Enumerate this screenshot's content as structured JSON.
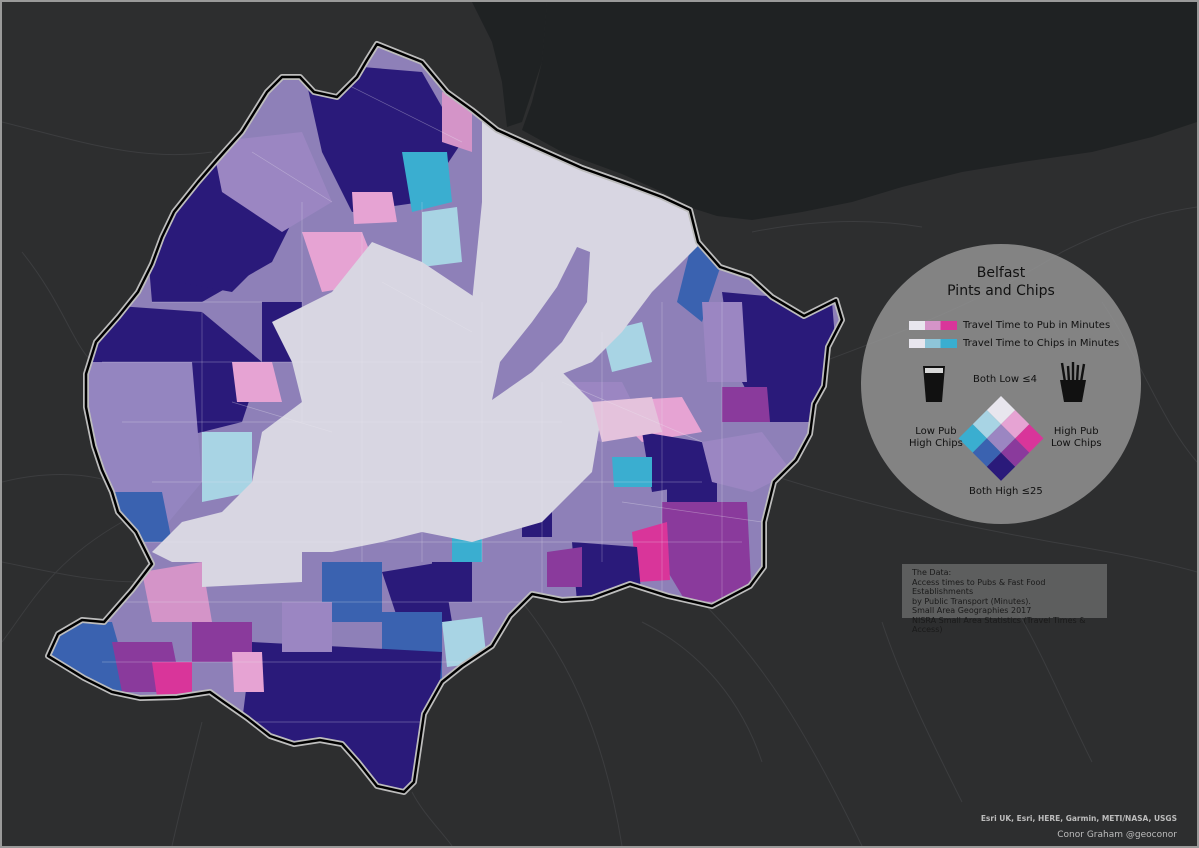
{
  "legend": {
    "title_line1": "Belfast",
    "title_line2": "Pints and Chips",
    "pub_ramp_label": "Travel Time to Pub in Minutes",
    "chips_ramp_label": "Travel Time to Chips in Minutes",
    "top_label": "Both Low ≤4",
    "left_label_line1": "Low  Pub",
    "left_label_line2": "High Chips",
    "right_label_line1": "High Pub",
    "right_label_line2": "Low Chips",
    "bottom_label": "Both High ≤25",
    "icons": [
      "pint-glass-icon",
      "chips-icon"
    ],
    "pub_ramp_colors": [
      "#e8e6ee",
      "#d494c8",
      "#d9359a"
    ],
    "chips_ramp_colors": [
      "#e8e6ee",
      "#8ec5d8",
      "#3aaed0"
    ],
    "bivariate_grid": [
      [
        "#e8e6ee",
        "#e6a3d3",
        "#d9359a"
      ],
      [
        "#a8d4e4",
        "#9b86c2",
        "#8a3a9c"
      ],
      [
        "#3aaed0",
        "#3a62b0",
        "#2a1a7a"
      ]
    ]
  },
  "data_note": {
    "lines": [
      "The Data:",
      "Access times to Pubs & Fast Food Establishments",
      "by Public Transport (Minutes).",
      "Small Area Geographies 2017",
      "NISRA Small Area Statistics (Travel Times & Access)"
    ]
  },
  "attribution": "Esri UK, Esri, HERE, Garmin, METI/NASA, USGS",
  "author": "Conor Graham @geoconor",
  "colors": {
    "land": "#2d2e2f",
    "water": "#1f2223",
    "boundary": "#ffffff",
    "core": "#d8d6e2"
  }
}
